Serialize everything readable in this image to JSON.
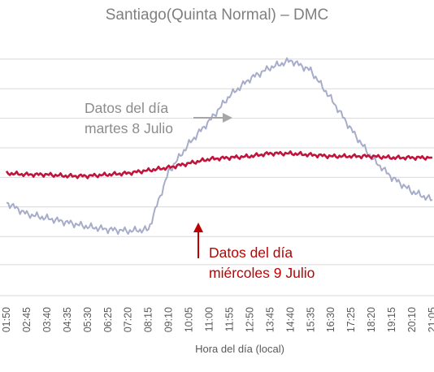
{
  "chart_data": {
    "type": "line",
    "title": "Santiago(Quinta Normal) – DMC",
    "xlabel": "Hora del día (local)",
    "ylabel": "",
    "categories": [
      "01:50",
      "02:45",
      "03:40",
      "04:35",
      "05:30",
      "06:25",
      "07:20",
      "08:15",
      "09:10",
      "10:05",
      "11:00",
      "11:55",
      "12:50",
      "13:45",
      "14:40",
      "15:35",
      "16:30",
      "17:25",
      "18:20",
      "19:15",
      "20:10",
      "21:05"
    ],
    "grid": true,
    "legend": "none",
    "series": [
      {
        "label": "martes 8 Julio",
        "color": "#a6acc9",
        "values": [
          3.3,
          2.9,
          2.75,
          2.6,
          2.45,
          2.35,
          2.3,
          2.35,
          4.4,
          5.4,
          6.2,
          7.1,
          7.7,
          8.1,
          8.35,
          8.0,
          7.0,
          5.9,
          4.9,
          4.2,
          3.7,
          3.4
        ]
      },
      {
        "label": "miércoles 9 Julio",
        "color": "#c0143c",
        "values": [
          4.35,
          4.3,
          4.3,
          4.25,
          4.25,
          4.3,
          4.35,
          4.45,
          4.55,
          4.7,
          4.85,
          4.9,
          4.95,
          5.05,
          5.05,
          5.0,
          4.95,
          4.95,
          4.95,
          4.9,
          4.9,
          4.9
        ]
      }
    ],
    "annotations": [
      {
        "lines": [
          "Datos del día",
          "martes 8 Julio"
        ],
        "color": "#8c8c8c"
      },
      {
        "lines": [
          "Datos del día",
          "miércoles 9 Julio"
        ],
        "color": "#c00000"
      }
    ]
  }
}
